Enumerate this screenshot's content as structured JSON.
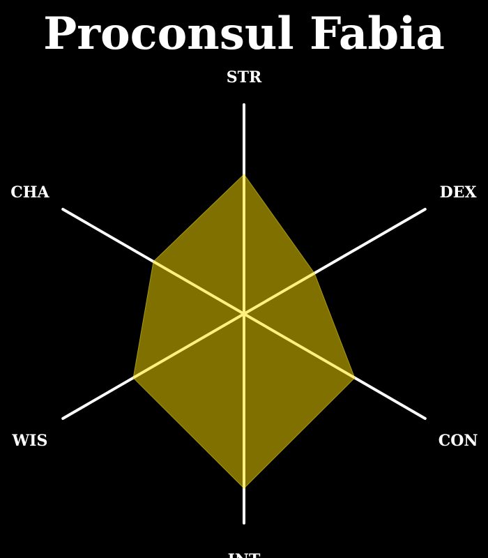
{
  "chart_data": {
    "type": "radar",
    "title": "Proconsul Fabia",
    "axes": [
      "STR",
      "DEX",
      "CON",
      "INT",
      "WIS",
      "CHA"
    ],
    "values": [
      12,
      7,
      11,
      15,
      11,
      9
    ],
    "max": 18,
    "grid": false,
    "legend": "none"
  },
  "colors": {
    "background": "#000000",
    "axis_line": "#ffffff",
    "fill": "#807000",
    "fill_stroke": "#a89a10",
    "axis_highlight": "#fff080",
    "text": "#ffffff"
  }
}
